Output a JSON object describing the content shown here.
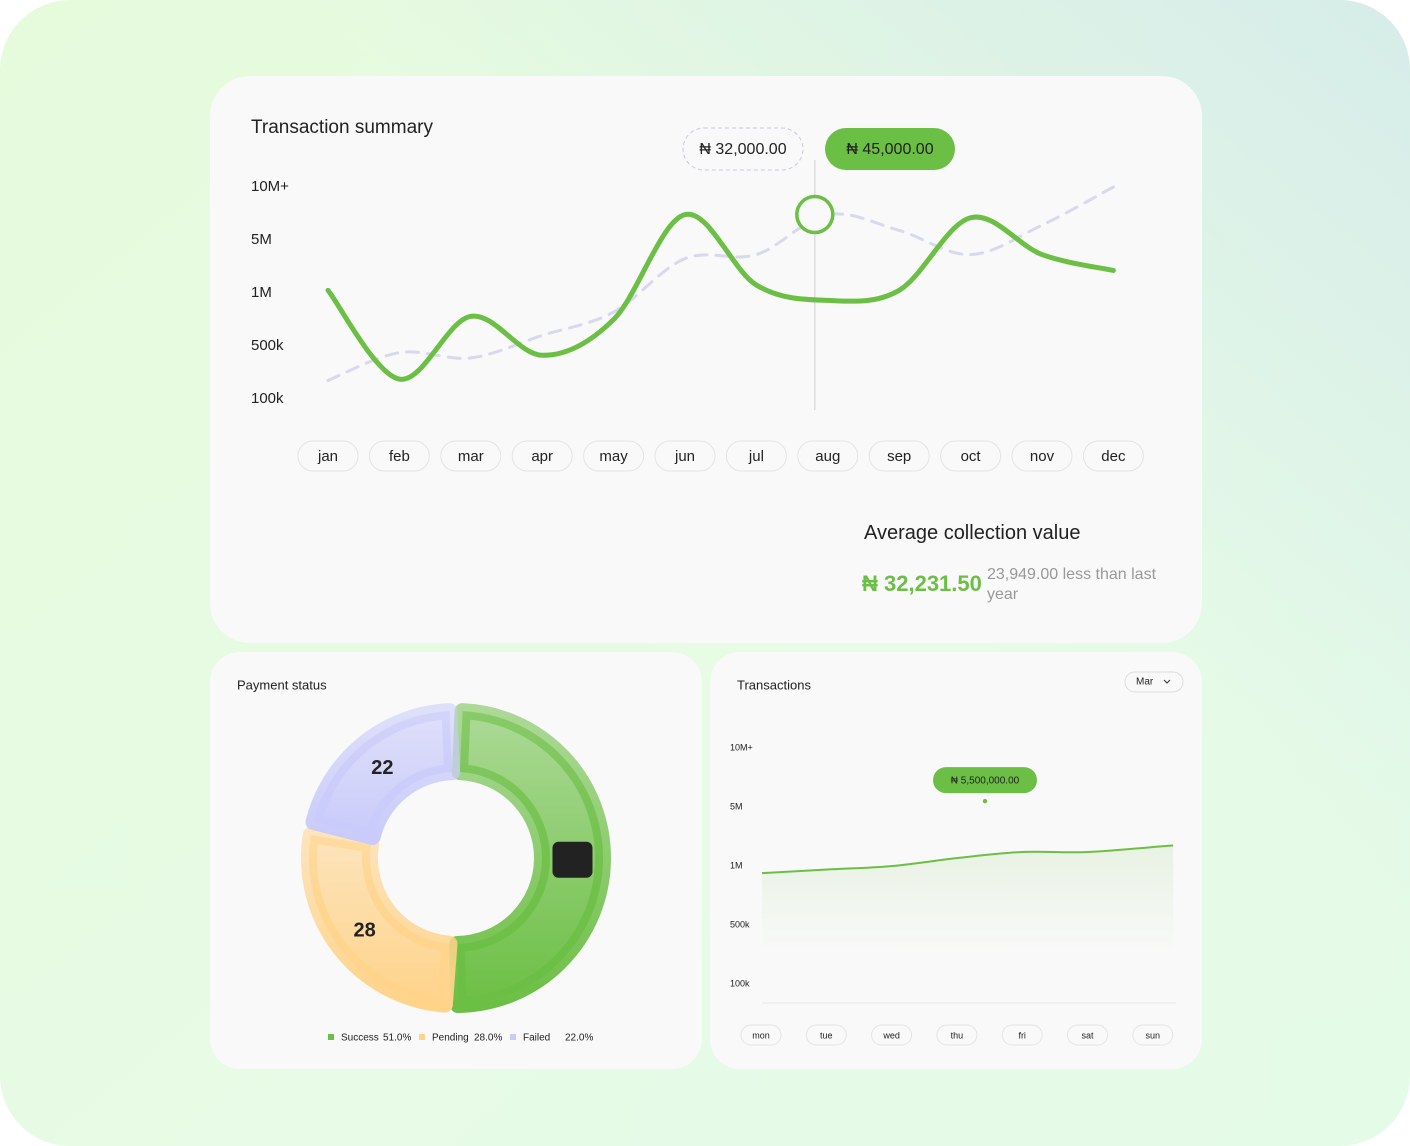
{
  "chart_data": [
    {
      "type": "line",
      "title": "Transaction summary",
      "categories": [
        "jan",
        "feb",
        "mar",
        "apr",
        "may",
        "jun",
        "jul",
        "aug",
        "sep",
        "oct",
        "nov",
        "dec"
      ],
      "ylim": [
        100000,
        10000000
      ],
      "yticks": [
        {
          "value": 100000,
          "label": "100k"
        },
        {
          "value": 500000,
          "label": "500k"
        },
        {
          "value": 1000000,
          "label": "1M"
        },
        {
          "value": 5000000,
          "label": "5M"
        },
        {
          "value": 10000000,
          "label": "10M+"
        }
      ],
      "series": [
        {
          "color": "#6cbf45",
          "style": "solid",
          "values": [
            1200000,
            250000,
            780000,
            430000,
            750000,
            7400000,
            1600000,
            930000,
            1200000,
            7100000,
            3900000,
            2700000
          ]
        },
        {
          "color": "#d8d8ee",
          "style": "dashed",
          "values": [
            240000,
            450000,
            410000,
            600000,
            820000,
            3600000,
            3900000,
            7400000,
            5900000,
            3900000,
            6400000,
            10000000
          ]
        }
      ],
      "annotations": [
        "₦ 32,000.00",
        "₦ 45,000.00"
      ],
      "summary": {
        "title": "Average collection value",
        "value": "₦ 32,231.50",
        "note": "23,949.00 less than last year"
      }
    },
    {
      "type": "donut",
      "title": "Payment status",
      "categories": [
        "Success",
        "Pending",
        "Failed"
      ],
      "values": [
        51,
        28,
        22
      ],
      "value_labels": [
        "51.0%",
        "28.0%",
        "22.0%"
      ],
      "colors": [
        "#6cbf45",
        "#ffd38a",
        "#c9cbfa"
      ]
    },
    {
      "type": "area",
      "title": "Transactions",
      "filter": "Mar",
      "categories": [
        "mon",
        "tue",
        "wed",
        "thu",
        "fri",
        "sat",
        "sun"
      ],
      "ylim": [
        100000,
        10000000
      ],
      "yticks": [
        {
          "value": 100000,
          "label": "100k"
        },
        {
          "value": 500000,
          "label": "500k"
        },
        {
          "value": 1000000,
          "label": "1M"
        },
        {
          "value": 5000000,
          "label": "5M"
        },
        {
          "value": 10000000,
          "label": "10M+"
        }
      ],
      "series": [
        {
          "color": "#6cbf45",
          "values": [
            940000,
            970000,
            1000000,
            1540000,
            1950000,
            1950000,
            2400000
          ]
        }
      ],
      "annotation": {
        "value": 5500000,
        "label": "₦ 5,500,000.00"
      }
    }
  ]
}
